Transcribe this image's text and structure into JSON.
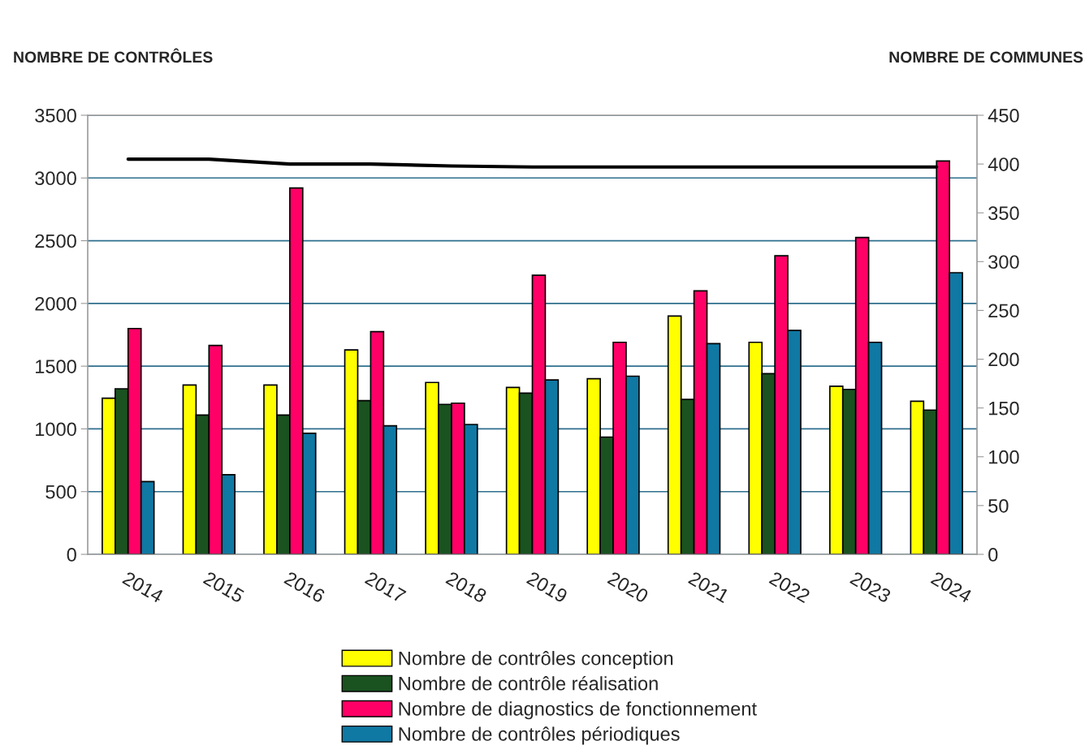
{
  "chart_data": {
    "type": "bar",
    "categories": [
      "2014",
      "2015",
      "2016",
      "2017",
      "2018",
      "2019",
      "2020",
      "2021",
      "2022",
      "2023",
      "2024"
    ],
    "ylabel": "NOMBRE DE CONTRÔLES",
    "y2label": "NOMBRE DE COMMUNES",
    "ylim": [
      0,
      3500
    ],
    "yticks": [
      0,
      500,
      1000,
      1500,
      2000,
      2500,
      3000,
      3500
    ],
    "y2lim": [
      0,
      450
    ],
    "y2ticks": [
      0,
      50,
      100,
      150,
      200,
      250,
      300,
      350,
      400,
      450
    ],
    "grid": "y",
    "legend": "bottom",
    "series": [
      {
        "name": "Nombre de contrôles conception",
        "color": "#ffff00",
        "values": [
          1245,
          1350,
          1350,
          1630,
          1370,
          1330,
          1400,
          1900,
          1690,
          1340,
          1220
        ]
      },
      {
        "name": "Nombre de contrôle réalisation",
        "color": "#1a5220",
        "values": [
          1320,
          1110,
          1110,
          1225,
          1195,
          1285,
          935,
          1235,
          1440,
          1315,
          1150
        ]
      },
      {
        "name": "Nombre de diagnostics de fonctionnement",
        "color": "#ff0066",
        "values": [
          1800,
          1665,
          2920,
          1775,
          1205,
          2225,
          1690,
          2100,
          2380,
          2525,
          3135
        ]
      },
      {
        "name": "Nombre de contrôles périodiques",
        "color": "#0f78a3",
        "values": [
          580,
          635,
          965,
          1025,
          1035,
          1390,
          1420,
          1680,
          1785,
          1690,
          2245
        ]
      },
      {
        "type": "line",
        "axis": "y2",
        "color": "#000000",
        "values": [
          405,
          405,
          400,
          400,
          398,
          397,
          397,
          397,
          397,
          397,
          397
        ]
      }
    ]
  }
}
